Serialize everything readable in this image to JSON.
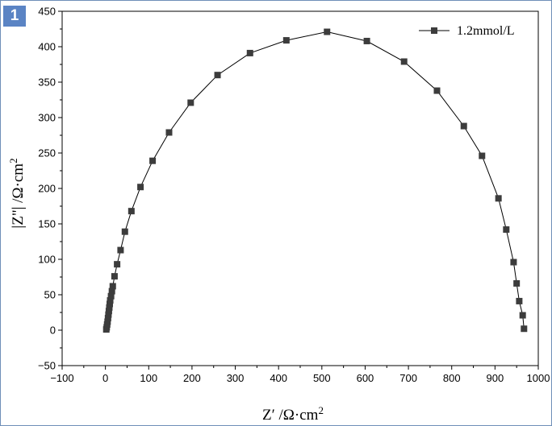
{
  "panel": {
    "badge": "1"
  },
  "chart_data": {
    "type": "scatter",
    "title": "",
    "xlabel": "Z′ /Ω·cm",
    "xlabel_sup": "2",
    "ylabel": "|Z\"| /Ω·cm",
    "ylabel_sup": "2",
    "xlim": [
      -100,
      1000
    ],
    "ylim": [
      -50,
      450
    ],
    "xticks": [
      -100,
      0,
      100,
      200,
      300,
      400,
      500,
      600,
      700,
      800,
      900,
      1000
    ],
    "yticks": [
      -50,
      0,
      50,
      100,
      150,
      200,
      250,
      300,
      350,
      400,
      450
    ],
    "grid": false,
    "legend_position": "top-right",
    "series": [
      {
        "name": "1.2mmol/L",
        "color": "#3c3c3c",
        "marker": "square",
        "connected": true,
        "points": [
          [
            2,
            1
          ],
          [
            3,
            4
          ],
          [
            4,
            8
          ],
          [
            5,
            12
          ],
          [
            6,
            17
          ],
          [
            7,
            22
          ],
          [
            8,
            27
          ],
          [
            9,
            32
          ],
          [
            10,
            37
          ],
          [
            11,
            42
          ],
          [
            13,
            48
          ],
          [
            15,
            55
          ],
          [
            17,
            62
          ],
          [
            21,
            76
          ],
          [
            27,
            93
          ],
          [
            35,
            113
          ],
          [
            45,
            139
          ],
          [
            60,
            168
          ],
          [
            81,
            202
          ],
          [
            109,
            239
          ],
          [
            147,
            279
          ],
          [
            197,
            321
          ],
          [
            259,
            360
          ],
          [
            334,
            391
          ],
          [
            418,
            409
          ],
          [
            512,
            421
          ],
          [
            604,
            408
          ],
          [
            690,
            379
          ],
          [
            766,
            338
          ],
          [
            828,
            288
          ],
          [
            870,
            246
          ],
          [
            908,
            186
          ],
          [
            926,
            142
          ],
          [
            943,
            96
          ],
          [
            950,
            66
          ],
          [
            956,
            41
          ],
          [
            964,
            21
          ],
          [
            967,
            2
          ]
        ]
      }
    ]
  }
}
